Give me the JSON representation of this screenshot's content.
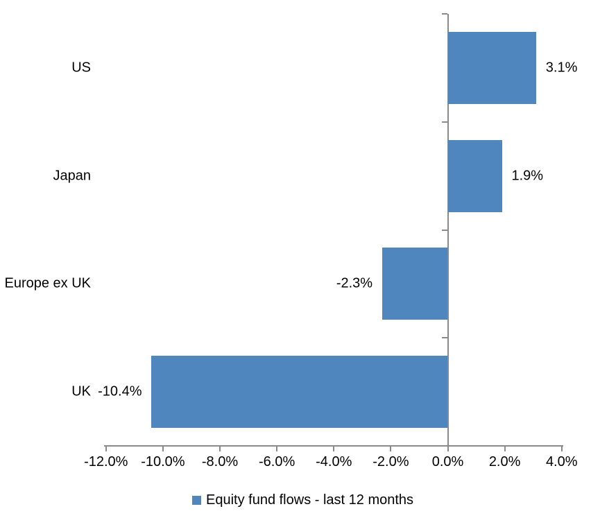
{
  "chart_data": {
    "type": "bar",
    "orientation": "horizontal",
    "title": "",
    "categories": [
      "US",
      "Japan",
      "Europe ex UK",
      "UK"
    ],
    "values": [
      3.1,
      1.9,
      -2.3,
      -10.4
    ],
    "data_labels": [
      "3.1%",
      "1.9%",
      "-2.3%",
      "-10.4%"
    ],
    "legend": "Equity fund flows - last 12 months",
    "legend_position": "bottom",
    "xlim": [
      -12,
      4
    ],
    "x_tick_step": 2,
    "x_ticks": [
      -12,
      -10,
      -8,
      -6,
      -4,
      -2,
      0,
      2,
      4
    ],
    "x_tick_labels": [
      "-12.0%",
      "-10.0%",
      "-8.0%",
      "-6.0%",
      "-4.0%",
      "-2.0%",
      "0.0%",
      "2.0%",
      "4.0%"
    ],
    "grid": false,
    "colors": {
      "bar": "#4E86BD",
      "axis": "#8A8A8A",
      "text": "#000000",
      "background": "#FFFFFF"
    }
  }
}
